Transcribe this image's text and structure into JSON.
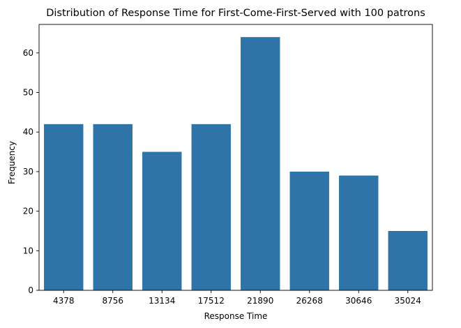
{
  "chart_data": {
    "type": "bar",
    "title": "Distribution of Response Time for First-Come-First-Served with 100 patrons",
    "xlabel": "Response Time",
    "ylabel": "Frequency",
    "categories": [
      "4378",
      "8756",
      "13134",
      "17512",
      "21890",
      "26268",
      "30646",
      "35024"
    ],
    "values": [
      42,
      42,
      35,
      42,
      64,
      30,
      29,
      15
    ],
    "ylim": [
      0,
      67.2
    ],
    "yticks": [
      0,
      10,
      20,
      30,
      40,
      50,
      60
    ],
    "bar_color": "#2e74a8",
    "grid": false,
    "legend": "none"
  }
}
